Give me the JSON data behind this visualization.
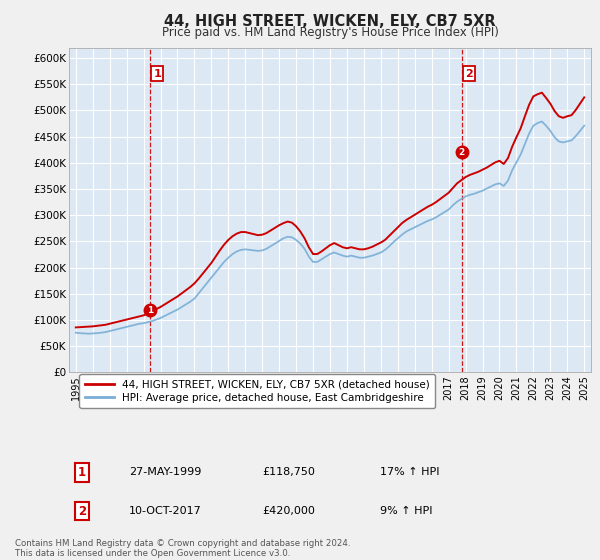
{
  "title": "44, HIGH STREET, WICKEN, ELY, CB7 5XR",
  "subtitle": "Price paid vs. HM Land Registry's House Price Index (HPI)",
  "ylim": [
    0,
    620000
  ],
  "yticks": [
    0,
    50000,
    100000,
    150000,
    200000,
    250000,
    300000,
    350000,
    400000,
    450000,
    500000,
    550000,
    600000
  ],
  "ytick_labels": [
    "£0",
    "£50K",
    "£100K",
    "£150K",
    "£200K",
    "£250K",
    "£300K",
    "£350K",
    "£400K",
    "£450K",
    "£500K",
    "£550K",
    "£600K"
  ],
  "xlim": [
    1994.6,
    2025.4
  ],
  "background_color": "#f0f0f0",
  "plot_bg_color": "#dce9f5",
  "grid_color": "#ffffff",
  "red_color": "#cc0000",
  "blue_color": "#7aaed6",
  "point1_x": 1999.38,
  "point1_y": 118750,
  "point2_x": 2017.78,
  "point2_y": 420000,
  "vline1_x": 1999.38,
  "vline2_x": 2017.78,
  "legend_label_red": "44, HIGH STREET, WICKEN, ELY, CB7 5XR (detached house)",
  "legend_label_blue": "HPI: Average price, detached house, East Cambridgeshire",
  "table_row1": [
    "1",
    "27-MAY-1999",
    "£118,750",
    "17% ↑ HPI"
  ],
  "table_row2": [
    "2",
    "10-OCT-2017",
    "£420,000",
    "9% ↑ HPI"
  ],
  "footer": "Contains HM Land Registry data © Crown copyright and database right 2024.\nThis data is licensed under the Open Government Licence v3.0.",
  "hpi_data_x": [
    1995.0,
    1995.25,
    1995.5,
    1995.75,
    1996.0,
    1996.25,
    1996.5,
    1996.75,
    1997.0,
    1997.25,
    1997.5,
    1997.75,
    1998.0,
    1998.25,
    1998.5,
    1998.75,
    1999.0,
    1999.25,
    1999.5,
    1999.75,
    2000.0,
    2000.25,
    2000.5,
    2000.75,
    2001.0,
    2001.25,
    2001.5,
    2001.75,
    2002.0,
    2002.25,
    2002.5,
    2002.75,
    2003.0,
    2003.25,
    2003.5,
    2003.75,
    2004.0,
    2004.25,
    2004.5,
    2004.75,
    2005.0,
    2005.25,
    2005.5,
    2005.75,
    2006.0,
    2006.25,
    2006.5,
    2006.75,
    2007.0,
    2007.25,
    2007.5,
    2007.75,
    2008.0,
    2008.25,
    2008.5,
    2008.75,
    2009.0,
    2009.25,
    2009.5,
    2009.75,
    2010.0,
    2010.25,
    2010.5,
    2010.75,
    2011.0,
    2011.25,
    2011.5,
    2011.75,
    2012.0,
    2012.25,
    2012.5,
    2012.75,
    2013.0,
    2013.25,
    2013.5,
    2013.75,
    2014.0,
    2014.25,
    2014.5,
    2014.75,
    2015.0,
    2015.25,
    2015.5,
    2015.75,
    2016.0,
    2016.25,
    2016.5,
    2016.75,
    2017.0,
    2017.25,
    2017.5,
    2017.75,
    2018.0,
    2018.25,
    2018.5,
    2018.75,
    2019.0,
    2019.25,
    2019.5,
    2019.75,
    2020.0,
    2020.25,
    2020.5,
    2020.75,
    2021.0,
    2021.25,
    2021.5,
    2021.75,
    2022.0,
    2022.25,
    2022.5,
    2022.75,
    2023.0,
    2023.25,
    2023.5,
    2023.75,
    2024.0,
    2024.25,
    2024.5,
    2024.75,
    2025.0
  ],
  "hpi_data_y": [
    76000,
    75000,
    74500,
    74000,
    74500,
    75000,
    76000,
    77000,
    79000,
    81000,
    83000,
    85000,
    87000,
    89000,
    91000,
    93000,
    94000,
    96000,
    98000,
    101000,
    104000,
    108000,
    112000,
    116000,
    120000,
    125000,
    130000,
    135000,
    141000,
    151000,
    161000,
    171000,
    181000,
    191000,
    201000,
    211000,
    219000,
    226000,
    231000,
    234000,
    235000,
    234000,
    233000,
    232000,
    233000,
    236000,
    241000,
    246000,
    251000,
    256000,
    259000,
    258000,
    253000,
    246000,
    236000,
    221000,
    211000,
    211000,
    216000,
    221000,
    226000,
    229000,
    226000,
    223000,
    221000,
    223000,
    221000,
    219000,
    219000,
    221000,
    223000,
    226000,
    229000,
    234000,
    241000,
    249000,
    256000,
    263000,
    269000,
    273000,
    277000,
    281000,
    285000,
    289000,
    292000,
    296000,
    301000,
    306000,
    311000,
    319000,
    326000,
    331000,
    336000,
    339000,
    341000,
    344000,
    347000,
    351000,
    355000,
    359000,
    361000,
    356000,
    366000,
    386000,
    401000,
    416000,
    436000,
    456000,
    471000,
    476000,
    479000,
    471000,
    461000,
    449000,
    441000,
    439000,
    441000,
    443000,
    451000,
    461000,
    471000
  ],
  "red_data_x": [
    1995.0,
    1995.25,
    1995.5,
    1995.75,
    1996.0,
    1996.25,
    1996.5,
    1996.75,
    1997.0,
    1997.25,
    1997.5,
    1997.75,
    1998.0,
    1998.25,
    1998.5,
    1998.75,
    1999.0,
    1999.25,
    1999.5,
    1999.75,
    2000.0,
    2000.25,
    2000.5,
    2000.75,
    2001.0,
    2001.25,
    2001.5,
    2001.75,
    2002.0,
    2002.25,
    2002.5,
    2002.75,
    2003.0,
    2003.25,
    2003.5,
    2003.75,
    2004.0,
    2004.25,
    2004.5,
    2004.75,
    2005.0,
    2005.25,
    2005.5,
    2005.75,
    2006.0,
    2006.25,
    2006.5,
    2006.75,
    2007.0,
    2007.25,
    2007.5,
    2007.75,
    2008.0,
    2008.25,
    2008.5,
    2008.75,
    2009.0,
    2009.25,
    2009.5,
    2009.75,
    2010.0,
    2010.25,
    2010.5,
    2010.75,
    2011.0,
    2011.25,
    2011.5,
    2011.75,
    2012.0,
    2012.25,
    2012.5,
    2012.75,
    2013.0,
    2013.25,
    2013.5,
    2013.75,
    2014.0,
    2014.25,
    2014.5,
    2014.75,
    2015.0,
    2015.25,
    2015.5,
    2015.75,
    2016.0,
    2016.25,
    2016.5,
    2016.75,
    2017.0,
    2017.25,
    2017.5,
    2017.75,
    2018.0,
    2018.25,
    2018.5,
    2018.75,
    2019.0,
    2019.25,
    2019.5,
    2019.75,
    2020.0,
    2020.25,
    2020.5,
    2020.75,
    2021.0,
    2021.25,
    2021.5,
    2021.75,
    2022.0,
    2022.25,
    2022.5,
    2022.75,
    2023.0,
    2023.25,
    2023.5,
    2023.75,
    2024.0,
    2024.25,
    2024.5,
    2024.75,
    2025.0
  ],
  "red_data_y": [
    86000,
    86500,
    87000,
    87500,
    88000,
    89000,
    90000,
    91000,
    93000,
    95000,
    97000,
    99000,
    101000,
    103000,
    105000,
    107000,
    109000,
    113000,
    117000,
    121000,
    125000,
    130000,
    135000,
    140000,
    145000,
    151000,
    157000,
    163000,
    170000,
    179000,
    189000,
    199000,
    209000,
    221000,
    233000,
    244000,
    253000,
    260000,
    265000,
    268000,
    268000,
    266000,
    264000,
    262000,
    263000,
    266000,
    271000,
    276000,
    281000,
    285000,
    288000,
    286000,
    279000,
    269000,
    256000,
    239000,
    226000,
    226000,
    231000,
    237000,
    243000,
    247000,
    243000,
    239000,
    237000,
    239000,
    237000,
    235000,
    235000,
    237000,
    240000,
    244000,
    248000,
    253000,
    261000,
    269000,
    277000,
    285000,
    291000,
    296000,
    301000,
    306000,
    311000,
    316000,
    320000,
    325000,
    331000,
    337000,
    343000,
    352000,
    361000,
    367000,
    373000,
    377000,
    380000,
    383000,
    387000,
    391000,
    396000,
    401000,
    404000,
    398000,
    409000,
    431000,
    449000,
    466000,
    489000,
    511000,
    527000,
    531000,
    534000,
    524000,
    513000,
    499000,
    489000,
    486000,
    489000,
    491000,
    501000,
    513000,
    525000
  ]
}
